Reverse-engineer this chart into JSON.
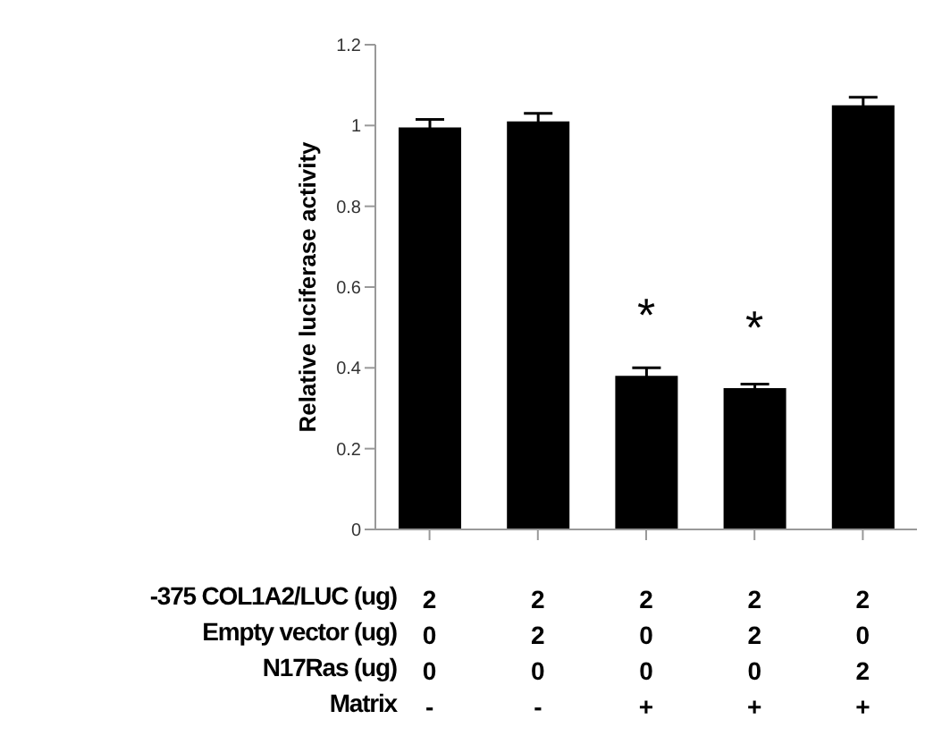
{
  "chart_data": {
    "type": "bar",
    "ylabel": "Relative luciferase activity",
    "categories": [
      "2\n0\n0\n-",
      "2\n2\n0\n-",
      "2\n0\n0\n+",
      "2\n2\n0\n+",
      "2\n0\n2\n+"
    ],
    "values": [
      0.995,
      1.01,
      0.38,
      0.35,
      1.05
    ],
    "errors": [
      0.02,
      0.02,
      0.02,
      0.01,
      0.02
    ],
    "color": "#000000",
    "ylim": [
      0,
      1.2
    ],
    "yticks": [
      0,
      0.2,
      0.4,
      0.6,
      0.8,
      1,
      1.2
    ],
    "annotations": [
      "-375 COL1A2/LUC (ug)",
      "Empty vector (ug)",
      "N17Ras (ug)",
      "Matrix",
      {
        "text": "*",
        "x": "2\n0\n0\n+",
        "y": 0.38
      },
      {
        "text": "*",
        "x": "2\n2\n0\n+",
        "y": 0.35
      }
    ]
  }
}
